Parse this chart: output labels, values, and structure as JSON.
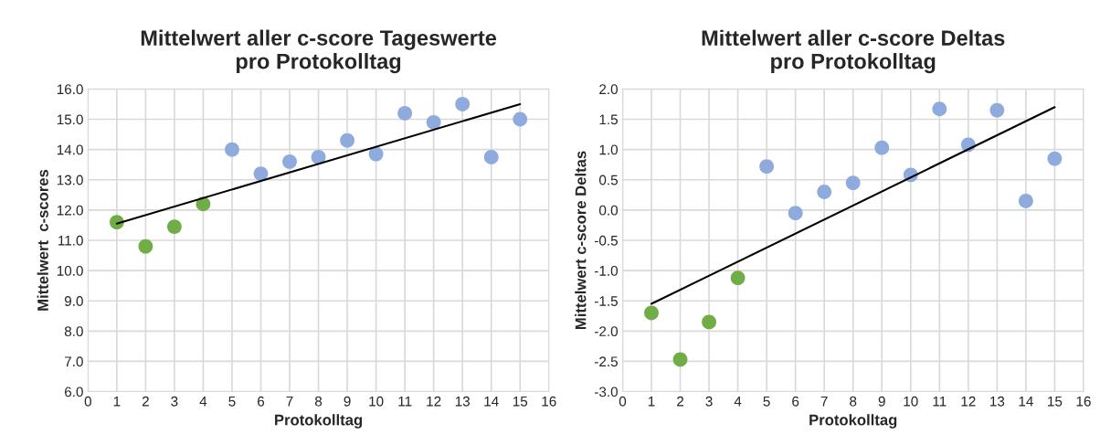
{
  "chart_data": [
    {
      "type": "scatter",
      "title": "Mittelwert aller c-score Tageswerte\npro Protokolltag",
      "xlabel": "Protokolltag",
      "ylabel": "Mittelwert  c-scores",
      "grid": true,
      "marker": "circle",
      "xlim": [
        0,
        16
      ],
      "xticks": [
        0,
        1,
        2,
        3,
        4,
        5,
        6,
        7,
        8,
        9,
        10,
        11,
        12,
        13,
        14,
        15,
        16
      ],
      "ylim": [
        6,
        16
      ],
      "yticks": [
        {
          "value": 6,
          "label": "6.0"
        },
        {
          "value": 7,
          "label": "7.0"
        },
        {
          "value": 8,
          "label": "8.0"
        },
        {
          "value": 9,
          "label": "9.0"
        },
        {
          "value": 10,
          "label": "10.0"
        },
        {
          "value": 11,
          "label": "11.0"
        },
        {
          "value": 12,
          "label": "12.0"
        },
        {
          "value": 13,
          "label": "13.0"
        },
        {
          "value": 14,
          "label": "14.0"
        },
        {
          "value": 15,
          "label": "15.0"
        },
        {
          "value": 16,
          "label": "16.0"
        }
      ],
      "series": [
        {
          "color": "#70ad47",
          "x": [
            1,
            2,
            3,
            4
          ],
          "values": [
            11.6,
            10.8,
            11.45,
            12.2
          ]
        },
        {
          "color": "#8faadc",
          "x": [
            5,
            6,
            7,
            8,
            9,
            10,
            11,
            12,
            13,
            14,
            15
          ],
          "values": [
            14.0,
            13.2,
            13.6,
            13.75,
            14.3,
            13.85,
            15.2,
            14.9,
            15.5,
            13.75,
            15.0
          ]
        },
        {
          "type": "line",
          "color": "#000000",
          "marker": "none",
          "x": [
            1,
            15
          ],
          "values": [
            11.55,
            15.5
          ]
        }
      ]
    },
    {
      "type": "scatter",
      "title": "Mittelwert aller c-score Deltas\npro Protokolltag",
      "xlabel": "Protokolltag",
      "ylabel": "Mittelwert c-score Deltas",
      "grid": true,
      "marker": "circle",
      "xlim": [
        0,
        16
      ],
      "xticks": [
        0,
        1,
        2,
        3,
        4,
        5,
        6,
        7,
        8,
        9,
        10,
        11,
        12,
        13,
        14,
        15,
        16
      ],
      "ylim": [
        -3,
        2
      ],
      "yticks": [
        {
          "value": -3,
          "label": "-3.0"
        },
        {
          "value": -2.5,
          "label": "-2.5"
        },
        {
          "value": -2,
          "label": "-2.0"
        },
        {
          "value": -1.5,
          "label": "-1.5"
        },
        {
          "value": -1,
          "label": "-1.0"
        },
        {
          "value": -0.5,
          "label": "-0.5"
        },
        {
          "value": 0,
          "label": "0.0"
        },
        {
          "value": 0.5,
          "label": "0.5"
        },
        {
          "value": 1,
          "label": "1.0"
        },
        {
          "value": 1.5,
          "label": "1.5"
        },
        {
          "value": 2,
          "label": "2.0"
        }
      ],
      "series": [
        {
          "color": "#70ad47",
          "x": [
            1,
            2,
            3,
            4
          ],
          "values": [
            -1.7,
            -2.47,
            -1.85,
            -1.12
          ]
        },
        {
          "color": "#8faadc",
          "x": [
            5,
            6,
            7,
            8,
            9,
            10,
            11,
            12,
            13,
            14,
            15
          ],
          "values": [
            0.72,
            -0.05,
            0.3,
            0.45,
            1.03,
            0.58,
            1.67,
            1.08,
            1.65,
            0.15,
            0.85
          ]
        },
        {
          "type": "line",
          "color": "#000000",
          "marker": "none",
          "x": [
            1,
            15
          ],
          "values": [
            -1.55,
            1.7
          ]
        }
      ]
    }
  ]
}
